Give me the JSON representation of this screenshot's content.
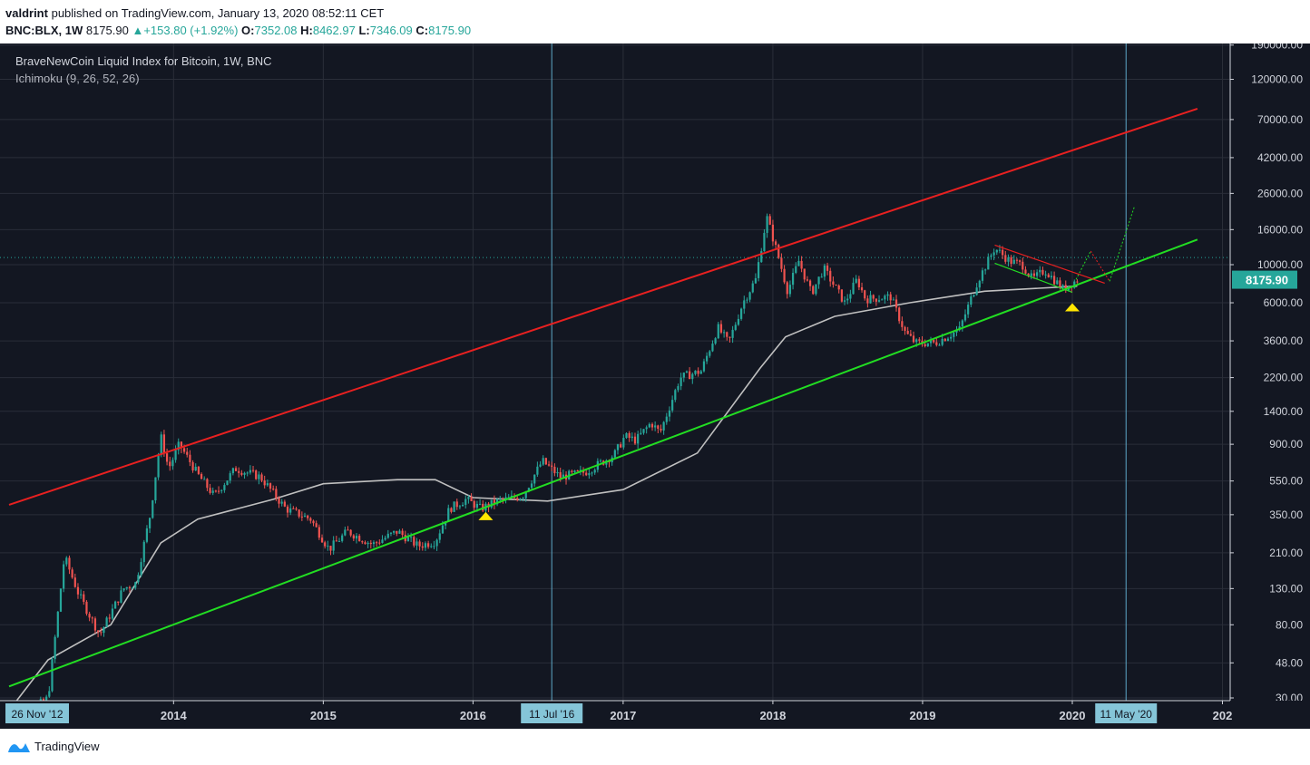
{
  "header": {
    "author": "valdrint",
    "published_text": "published on TradingView.com, January 13, 2020 08:52:11 CET",
    "symbol": "BNC:BLX, 1W",
    "price": "8175.90",
    "change": "+153.80 (+1.92%)",
    "open_label": "O:",
    "open": "7352.08",
    "high_label": "H:",
    "high": "8462.97",
    "low_label": "L:",
    "low": "7346.09",
    "close_label": "C:",
    "close": "8175.90"
  },
  "chart_title": "BraveNewCoin Liquid Index for Bitcoin, 1W, BNC",
  "indicator": "Ichimoku (9, 26, 52, 26)",
  "footer": {
    "brand": "TradingView"
  },
  "colors": {
    "background": "#131722",
    "up": "#26a69a",
    "down": "#ef5350",
    "resistance": "#e82020",
    "support": "#22dd22",
    "baseline": "#c0c0c0",
    "marker": "#ffe600"
  },
  "icons": [
    "trading-view-logo-icon",
    "up-triangle-icon",
    "support-marker-icon"
  ],
  "chart_data": {
    "type": "line",
    "scale": "log",
    "x_ticks": [
      "2014",
      "2015",
      "2016",
      "2017",
      "2018",
      "2019",
      "2020",
      "202"
    ],
    "y_ticks": [
      "190000.00",
      "120000.00",
      "70000.00",
      "42000.00",
      "26000.00",
      "16000.00",
      "10000.00",
      "6000.00",
      "3600.00",
      "2200.00",
      "1400.00",
      "900.00",
      "550.00",
      "350.00",
      "210.00",
      "130.00",
      "80.00",
      "48.00",
      "30.00"
    ],
    "ylim": [
      28,
      190000
    ],
    "last_price_label": "8175.90",
    "horizontal_level": 11000,
    "date_markers": [
      {
        "label": "26 Nov '12",
        "date": "2012-11-26"
      },
      {
        "label": "11 Jul '16",
        "date": "2016-07-11"
      },
      {
        "label": "11 May '20",
        "date": "2020-05-11"
      }
    ],
    "series": [
      {
        "kind": "weekly-candles",
        "path": [
          [
            "2012-11-26",
            12
          ],
          [
            "2013-01-15",
            25
          ],
          [
            "2013-03-01",
            30
          ],
          [
            "2013-04-10",
            200
          ],
          [
            "2013-05-15",
            120
          ],
          [
            "2013-07-05",
            70
          ],
          [
            "2013-09-01",
            130
          ],
          [
            "2013-10-01",
            140
          ],
          [
            "2013-11-05",
            350
          ],
          [
            "2013-12-01",
            1000
          ],
          [
            "2013-12-20",
            650
          ],
          [
            "2014-01-15",
            900
          ],
          [
            "2014-03-01",
            600
          ],
          [
            "2014-04-10",
            450
          ],
          [
            "2014-06-01",
            650
          ],
          [
            "2014-08-01",
            580
          ],
          [
            "2014-10-01",
            380
          ],
          [
            "2014-12-01",
            330
          ],
          [
            "2015-01-15",
            220
          ],
          [
            "2015-03-01",
            280
          ],
          [
            "2015-05-01",
            235
          ],
          [
            "2015-07-01",
            280
          ],
          [
            "2015-08-20",
            230
          ],
          [
            "2015-10-01",
            245
          ],
          [
            "2015-11-05",
            380
          ],
          [
            "2015-12-15",
            430
          ],
          [
            "2016-01-20",
            380
          ],
          [
            "2016-03-01",
            420
          ],
          [
            "2016-05-01",
            450
          ],
          [
            "2016-06-18",
            720
          ],
          [
            "2016-08-01",
            580
          ],
          [
            "2016-10-01",
            620
          ],
          [
            "2016-12-10",
            780
          ],
          [
            "2017-01-05",
            1000
          ],
          [
            "2017-02-01",
            950
          ],
          [
            "2017-03-10",
            1200
          ],
          [
            "2017-04-01",
            1050
          ],
          [
            "2017-05-20",
            2200
          ],
          [
            "2017-07-10",
            2400
          ],
          [
            "2017-08-20",
            4300
          ],
          [
            "2017-09-15",
            3500
          ],
          [
            "2017-10-20",
            6000
          ],
          [
            "2017-11-20",
            8200
          ],
          [
            "2017-12-17",
            19000
          ],
          [
            "2018-01-15",
            11000
          ],
          [
            "2018-02-06",
            7000
          ],
          [
            "2018-03-05",
            10500
          ],
          [
            "2018-04-05",
            6800
          ],
          [
            "2018-05-05",
            9500
          ],
          [
            "2018-06-25",
            6000
          ],
          [
            "2018-07-25",
            8200
          ],
          [
            "2018-08-15",
            6300
          ],
          [
            "2018-10-15",
            6500
          ],
          [
            "2018-11-20",
            4000
          ],
          [
            "2018-12-15",
            3500
          ],
          [
            "2019-02-01",
            3500
          ],
          [
            "2019-04-01",
            4200
          ],
          [
            "2019-05-15",
            8000
          ],
          [
            "2019-06-26",
            12500
          ],
          [
            "2019-08-01",
            10500
          ],
          [
            "2019-09-01",
            10000
          ],
          [
            "2019-09-26",
            8200
          ],
          [
            "2019-10-26",
            9300
          ],
          [
            "2019-12-10",
            7200
          ],
          [
            "2020-01-13",
            8175
          ]
        ]
      },
      {
        "kind": "kijun-baseline",
        "path": [
          [
            "2012-12-10",
            28
          ],
          [
            "2013-03-01",
            50
          ],
          [
            "2013-08-01",
            80
          ],
          [
            "2013-12-01",
            240
          ],
          [
            "2014-03-01",
            330
          ],
          [
            "2014-09-01",
            430
          ],
          [
            "2015-01-01",
            530
          ],
          [
            "2015-07-01",
            560
          ],
          [
            "2015-10-01",
            560
          ],
          [
            "2016-01-01",
            440
          ],
          [
            "2016-07-01",
            420
          ],
          [
            "2017-01-01",
            490
          ],
          [
            "2017-07-01",
            800
          ],
          [
            "2017-12-01",
            2500
          ],
          [
            "2018-02-01",
            3800
          ],
          [
            "2018-06-01",
            5000
          ],
          [
            "2018-12-01",
            6000
          ],
          [
            "2019-06-01",
            7000
          ],
          [
            "2020-01-13",
            7500
          ]
        ]
      },
      {
        "kind": "resistance-line",
        "path": [
          [
            "2012-11-26",
            400
          ],
          [
            "2020-11-01",
            81000
          ]
        ]
      },
      {
        "kind": "support-line",
        "path": [
          [
            "2012-11-26",
            35
          ],
          [
            "2020-11-01",
            14000
          ]
        ]
      },
      {
        "kind": "descending-resistance",
        "path": [
          [
            "2019-06-26",
            13000
          ],
          [
            "2020-03-20",
            7800
          ]
        ]
      },
      {
        "kind": "descending-support",
        "path": [
          [
            "2019-06-26",
            10200
          ],
          [
            "2020-01-01",
            6900
          ]
        ]
      },
      {
        "kind": "projection",
        "path": [
          [
            "2020-01-10",
            8200
          ],
          [
            "2020-02-15",
            12000
          ],
          [
            "2020-04-01",
            8000
          ],
          [
            "2020-06-01",
            22000
          ]
        ]
      }
    ],
    "markers": [
      {
        "date": "2016-02-01",
        "value": 420,
        "shape": "triangle-up"
      },
      {
        "date": "2020-01-01",
        "value": 6900,
        "shape": "triangle-up"
      }
    ]
  }
}
